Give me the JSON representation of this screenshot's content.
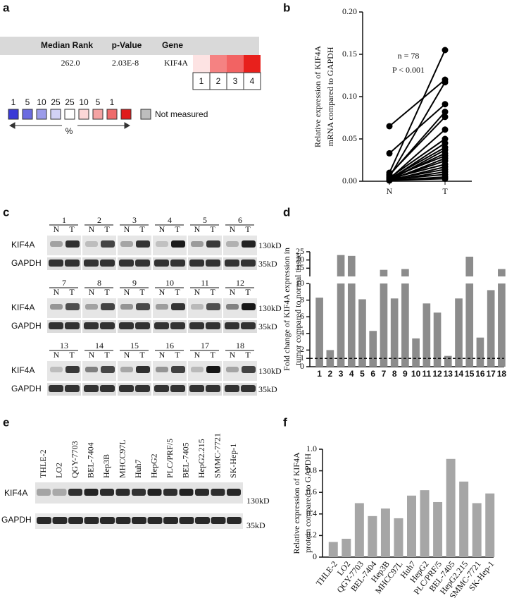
{
  "panel_labels": [
    "a",
    "b",
    "c",
    "d",
    "e",
    "f"
  ],
  "oncomine": {
    "headers": [
      "Median Rank",
      "p-Value",
      "Gene"
    ],
    "row": [
      "262.0",
      "2.03E-8",
      "KIF4A"
    ],
    "columns": [
      "1",
      "2",
      "3",
      "4"
    ],
    "legend_percentiles": [
      "1",
      "5",
      "10",
      "25",
      "25",
      "10",
      "5",
      "1"
    ],
    "legend_unit": "%",
    "not_measured": "Not measured"
  },
  "blot_c": {
    "lanes": [
      "1",
      "2",
      "3",
      "4",
      "5",
      "6",
      "7",
      "8",
      "9",
      "10",
      "11",
      "12",
      "13",
      "14",
      "15",
      "16",
      "17",
      "18"
    ],
    "pair": [
      "N",
      "T"
    ],
    "proteins": [
      "KIF4A",
      "GAPDH"
    ],
    "markers": [
      "130kD",
      "35kD"
    ]
  },
  "blot_e": {
    "cell_lines": [
      "THLE-2",
      "LO2",
      "QGY-7703",
      "BEL-7404",
      "Hep3B",
      "MHCC97L",
      "Huh7",
      "HepG2",
      "PLC/PRF/5",
      "BEL-7405",
      "HepG2.215",
      "SMMC-7721",
      "SK-Hep-1"
    ],
    "proteins": [
      "KIF4A",
      "GAPDH"
    ],
    "markers": [
      "130kD",
      "35kD"
    ]
  },
  "chart_data": [
    {
      "type": "line",
      "ylabel": [
        "Relative expression of KIF4A",
        "mRNA compared to GAPDH"
      ],
      "categories": [
        "N",
        "T"
      ],
      "annotations": [
        "n = 78",
        "P < 0.001"
      ],
      "color": "#000000",
      "ylim": [
        0,
        0.2
      ],
      "yticks": [
        {
          "value": 0,
          "label": "0.00"
        },
        0.05,
        {
          "value": 0.1,
          "label": "0.10"
        },
        0.15,
        {
          "value": 0.2,
          "label": "0.20"
        }
      ],
      "series": [
        {
          "values": [
            0.065,
            0.12
          ]
        },
        {
          "values": [
            0.033,
            0.091
          ]
        },
        {
          "values": [
            0.01,
            0.155
          ]
        },
        {
          "values": [
            0.005,
            0.117
          ]
        },
        {
          "values": [
            0.007,
            0.082
          ]
        },
        {
          "values": [
            0.008,
            0.076
          ]
        },
        {
          "values": [
            0.003,
            0.061
          ]
        },
        {
          "values": [
            0.004,
            0.05
          ]
        },
        {
          "values": [
            0.002,
            0.045
          ]
        },
        {
          "values": [
            0.003,
            0.04
          ]
        },
        {
          "values": [
            0.001,
            0.037
          ]
        },
        {
          "values": [
            0.002,
            0.033
          ]
        },
        {
          "values": [
            0.004,
            0.03
          ]
        },
        {
          "values": [
            0.001,
            0.027
          ]
        },
        {
          "values": [
            0.002,
            0.024
          ]
        },
        {
          "values": [
            0.003,
            0.02
          ]
        },
        {
          "values": [
            0.001,
            0.017
          ]
        },
        {
          "values": [
            0.002,
            0.014
          ]
        },
        {
          "values": [
            0.001,
            0.011
          ]
        },
        {
          "values": [
            0.002,
            0.008
          ]
        },
        {
          "values": [
            0.001,
            0.005
          ]
        },
        {
          "values": [
            0.001,
            0.003
          ]
        }
      ]
    },
    {
      "type": "bar",
      "ylabel": [
        "Fold change of KIF4A expression in",
        "tumor compared to normal tissue"
      ],
      "categories": [
        "1",
        "2",
        "3",
        "4",
        "5",
        "6",
        "7",
        "8",
        "9",
        "10",
        "11",
        "12",
        "13",
        "14",
        "15",
        "16",
        "17",
        "18"
      ],
      "values": [
        8.3,
        2,
        23,
        22.5,
        8.1,
        4.3,
        14,
        8.2,
        14.5,
        3.4,
        7.6,
        6.5,
        1.3,
        8.2,
        22,
        3.5,
        9.2,
        14.5
      ],
      "color": "#8c8c8c",
      "ylim": [
        0,
        25
      ],
      "axis_break": 10,
      "reference_line": 1,
      "yticks": [
        0,
        1,
        2,
        4,
        6,
        8,
        10,
        15,
        20,
        25
      ]
    },
    {
      "type": "bar",
      "ylabel": [
        "Relative expression of KIF4A",
        "protein compared to GAPDH"
      ],
      "categories": [
        "THLE-2",
        "LO2",
        "QGY-7703",
        "BEL-7404",
        "Hep3B",
        "MHCC97L",
        "Huh7",
        "HepG2",
        "PLC/PRF/5",
        "BEL-7405",
        "HepG2.215",
        "SMMC-7721",
        "SK-Hep-1"
      ],
      "values": [
        0.14,
        0.17,
        0.5,
        0.38,
        0.45,
        0.36,
        0.57,
        0.62,
        0.51,
        0.91,
        0.7,
        0.5,
        0.59
      ],
      "color": "#a6a6a6",
      "ylim": [
        0,
        1
      ],
      "yticks": [
        0,
        0.2,
        0.4,
        0.6,
        0.8,
        {
          "value": 1,
          "label": "1.0"
        }
      ]
    }
  ]
}
